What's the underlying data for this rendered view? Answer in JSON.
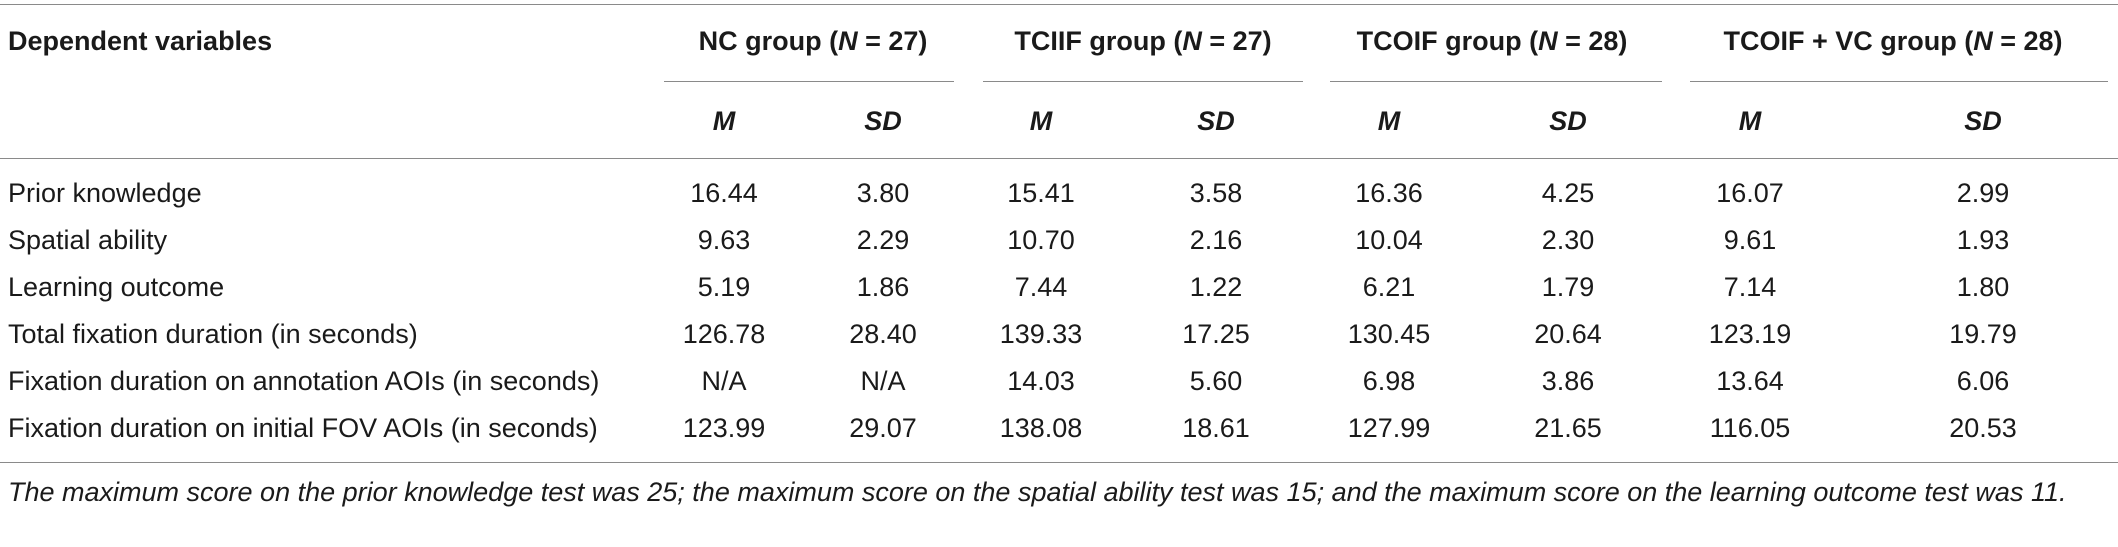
{
  "table": {
    "header": {
      "dependent_variables": "Dependent variables",
      "groups": [
        {
          "name": "NC group",
          "n_label": "N",
          "n_value": "= 27)"
        },
        {
          "name": "TCIIF group",
          "n_label": "N",
          "n_value": "= 27)"
        },
        {
          "name": "TCOIF group",
          "n_label": "N",
          "n_value": "= 28)"
        },
        {
          "name": "TCOIF + VC group",
          "n_label": "N",
          "n_value": "= 28)"
        }
      ],
      "m_label": "M",
      "sd_label": "SD"
    },
    "rows": [
      {
        "label": "Prior knowledge",
        "values": [
          "16.44",
          "3.80",
          "15.41",
          "3.58",
          "16.36",
          "4.25",
          "16.07",
          "2.99"
        ]
      },
      {
        "label": "Spatial ability",
        "values": [
          "9.63",
          "2.29",
          "10.70",
          "2.16",
          "10.04",
          "2.30",
          "9.61",
          "1.93"
        ]
      },
      {
        "label": "Learning outcome",
        "values": [
          "5.19",
          "1.86",
          "7.44",
          "1.22",
          "6.21",
          "1.79",
          "7.14",
          "1.80"
        ]
      },
      {
        "label": "Total fixation duration (in seconds)",
        "values": [
          "126.78",
          "28.40",
          "139.33",
          "17.25",
          "130.45",
          "20.64",
          "123.19",
          "19.79"
        ]
      },
      {
        "label": "Fixation duration on annotation AOIs (in seconds)",
        "values": [
          "N/A",
          "N/A",
          "14.03",
          "5.60",
          "6.98",
          "3.86",
          "13.64",
          "6.06"
        ]
      },
      {
        "label": "Fixation duration on initial FOV AOIs (in seconds)",
        "values": [
          "123.99",
          "29.07",
          "138.08",
          "18.61",
          "127.99",
          "21.65",
          "116.05",
          "20.53"
        ]
      }
    ],
    "footnote": "The maximum score on the prior knowledge test was 25; the maximum score on the spatial ability test was 15; and the maximum score on the learning outcome test was 11."
  }
}
